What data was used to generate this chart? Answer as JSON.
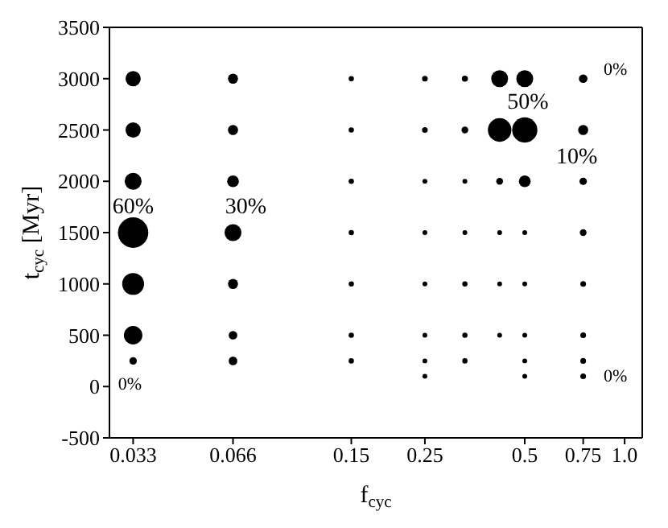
{
  "chart_data": {
    "type": "bubble",
    "xlabel": "f$_{cyc}$",
    "ylabel": "t$_{cyc}$ [Myr]",
    "log": "x",
    "xlim": [
      0.028,
      1.13
    ],
    "xticks": [
      0.033,
      0.066,
      0.15,
      0.25,
      0.5,
      0.75,
      {
        "value": 1.0,
        "label": "1.0"
      }
    ],
    "ylim": [
      -500,
      3500
    ],
    "yticks": [
      -500,
      0,
      500,
      1000,
      1500,
      2000,
      2500,
      3000,
      3500
    ],
    "legend": false,
    "series": [
      {
        "color": "#000000",
        "x": [
          0.033,
          0.033,
          0.033,
          0.033,
          0.033,
          0.033,
          0.033,
          0.066,
          0.066,
          0.066,
          0.066,
          0.066,
          0.066,
          0.066,
          0.15,
          0.15,
          0.15,
          0.15,
          0.15,
          0.15,
          0.15,
          0.25,
          0.25,
          0.25,
          0.25,
          0.25,
          0.25,
          0.25,
          0.25,
          0.33,
          0.33,
          0.33,
          0.33,
          0.33,
          0.33,
          0.33,
          0.42,
          0.42,
          0.42,
          0.42,
          0.42,
          0.42,
          0.5,
          0.5,
          0.5,
          0.5,
          0.5,
          0.5,
          0.5,
          0.5,
          0.75,
          0.75,
          0.75,
          0.75,
          0.75,
          0.75,
          0.75,
          0.75
        ],
        "values": [
          3000,
          2500,
          2000,
          1500,
          1000,
          500,
          250,
          3000,
          2500,
          2000,
          1500,
          1000,
          500,
          250,
          3000,
          2500,
          2000,
          1500,
          1000,
          500,
          250,
          3000,
          2500,
          2000,
          1500,
          1000,
          500,
          250,
          100,
          3000,
          2500,
          2000,
          1500,
          1000,
          500,
          250,
          3000,
          2500,
          2000,
          1500,
          1000,
          500,
          3000,
          2500,
          2000,
          1500,
          1000,
          500,
          250,
          100,
          3000,
          2500,
          2000,
          1500,
          1000,
          500,
          250,
          100
        ],
        "sizes": [
          0.25,
          0.25,
          0.31,
          1,
          0.52,
          0.37,
          0.06,
          0.11,
          0.11,
          0.15,
          0.31,
          0.11,
          0.08,
          0.08,
          0.03,
          0.03,
          0.03,
          0.03,
          0.03,
          0.03,
          0.03,
          0.035,
          0.035,
          0.025,
          0.025,
          0.025,
          0.025,
          0.025,
          0.025,
          0.04,
          0.05,
          0.025,
          0.025,
          0.03,
          0.03,
          0.03,
          0.31,
          0.6,
          0.05,
          0.025,
          0.025,
          0.025,
          0.31,
          0.69,
          0.15,
          0.025,
          0.025,
          0.025,
          0.025,
          0.025,
          0.08,
          0.11,
          0.06,
          0.05,
          0.035,
          0.035,
          0.035,
          0.035
        ]
      }
    ],
    "annotations": [
      {
        "text": "60%",
        "x": 0.033,
        "y": 1500
      },
      {
        "text": "30%",
        "x": 0.066,
        "y": 1500
      },
      {
        "text": "50%",
        "x": 0.5,
        "y": 2500
      },
      {
        "text": "10%",
        "x": 0.75,
        "y": 2000
      },
      {
        "text": "0%",
        "x": 0.75,
        "y": 3000
      },
      {
        "text": "0%",
        "x": 0.033,
        "y": 250
      },
      {
        "text": "0%",
        "x": 0.75,
        "y": 250
      }
    ]
  }
}
